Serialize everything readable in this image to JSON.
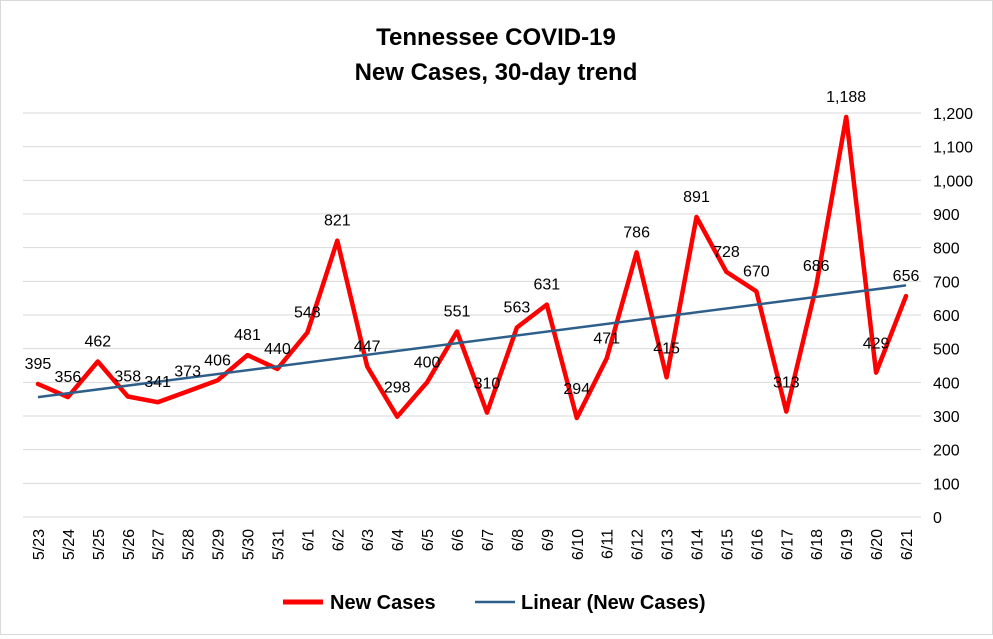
{
  "chart_data": {
    "type": "line",
    "title_lines": [
      "Tennessee COVID-19",
      "New Cases, 30-day trend"
    ],
    "categories": [
      "5/23",
      "5/24",
      "5/25",
      "5/26",
      "5/27",
      "5/28",
      "5/29",
      "5/30",
      "5/31",
      "6/1",
      "6/2",
      "6/3",
      "6/4",
      "6/5",
      "6/6",
      "6/7",
      "6/8",
      "6/9",
      "6/10",
      "6/11",
      "6/12",
      "6/13",
      "6/14",
      "6/15",
      "6/16",
      "6/17",
      "6/18",
      "6/19",
      "6/20",
      "6/21"
    ],
    "series": [
      {
        "name": "New Cases",
        "color": "#ff0000",
        "values": [
          395,
          356,
          462,
          358,
          341,
          373,
          406,
          481,
          440,
          548,
          821,
          447,
          298,
          400,
          551,
          310,
          563,
          631,
          294,
          471,
          786,
          415,
          891,
          728,
          670,
          313,
          686,
          1188,
          429,
          656
        ],
        "value_labels": [
          "395",
          "356",
          "462",
          "358",
          "341",
          "373",
          "406",
          "481",
          "440",
          "548",
          "821",
          "447",
          "298",
          "400",
          "551",
          "310",
          "563",
          "631",
          "294",
          "471",
          "786",
          "415",
          "891",
          "728",
          "670",
          "313",
          "686",
          "1,188",
          "429",
          "656"
        ]
      },
      {
        "name": "Linear (New Cases)",
        "color": "#2e5f8a",
        "type": "trendline",
        "start": 356,
        "end": 688
      }
    ],
    "y_axis": {
      "position": "right",
      "min": 0,
      "max": 1200,
      "step": 100,
      "tick_labels": [
        "0",
        "100",
        "200",
        "300",
        "400",
        "500",
        "600",
        "700",
        "800",
        "900",
        "1,000",
        "1,100",
        "1,200"
      ]
    },
    "grid": true,
    "legend": "bottom"
  }
}
